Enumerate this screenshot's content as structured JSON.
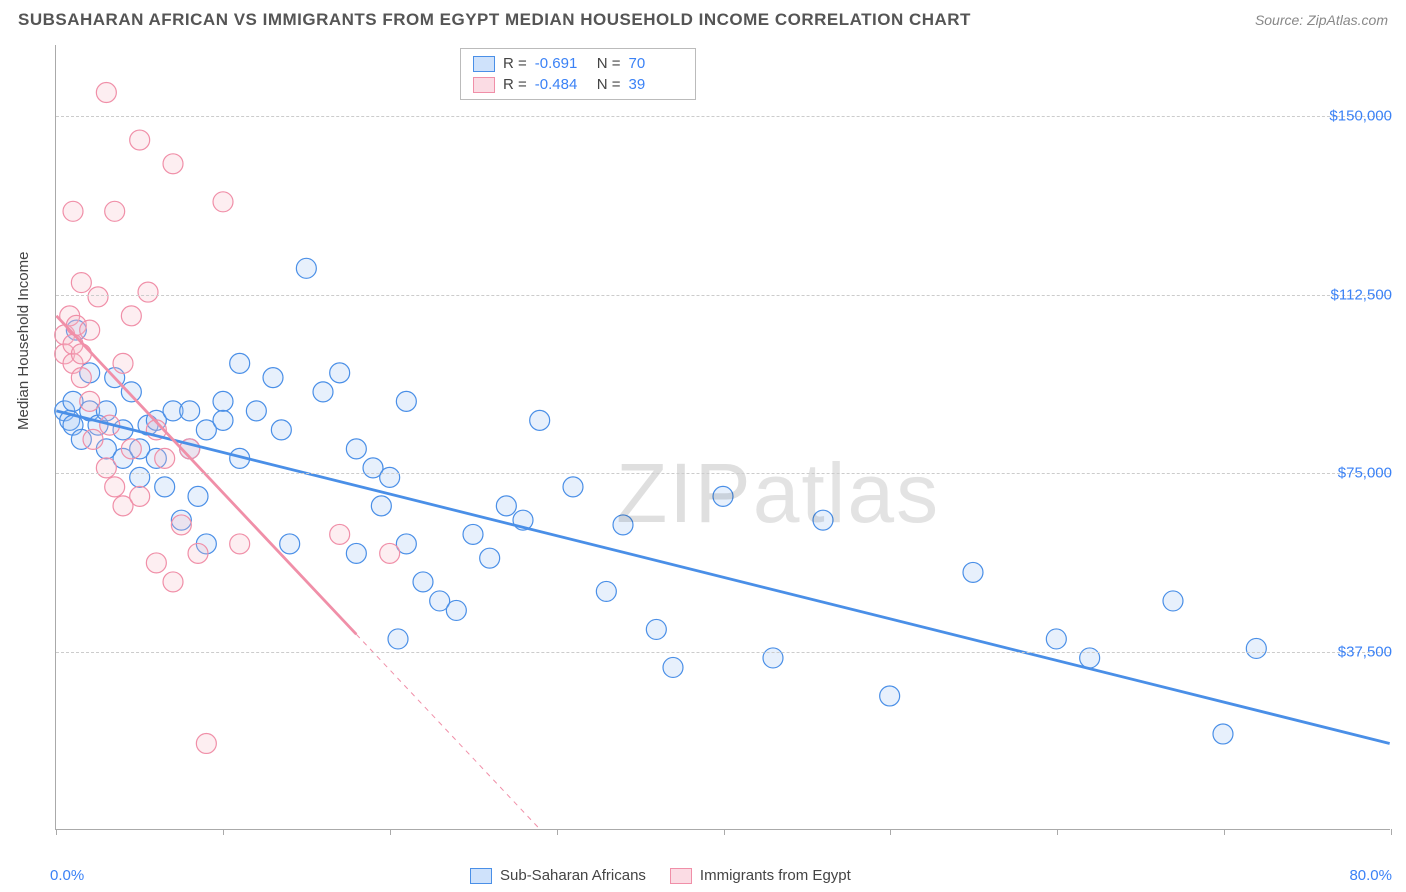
{
  "header": {
    "title": "SUBSAHARAN AFRICAN VS IMMIGRANTS FROM EGYPT MEDIAN HOUSEHOLD INCOME CORRELATION CHART",
    "source": "Source: ZipAtlas.com"
  },
  "chart": {
    "type": "scatter",
    "background_color": "#ffffff",
    "grid_color": "#cccccc",
    "axis_color": "#aaaaaa",
    "xlim": [
      0,
      80
    ],
    "ylim": [
      0,
      165000
    ],
    "x_ticks": [
      0,
      10,
      20,
      30,
      40,
      50,
      60,
      70,
      80
    ],
    "y_gridlines": [
      37500,
      75000,
      112500,
      150000
    ],
    "x_tick_labels": {
      "first": "0.0%",
      "last": "80.0%"
    },
    "y_tick_labels": [
      "$37,500",
      "$75,000",
      "$112,500",
      "$150,000"
    ],
    "ylabel": "Median Household Income",
    "ylabel_fontsize": 15,
    "tick_label_color": "#3b82f6",
    "marker_radius": 10,
    "marker_fill_opacity": 0.25,
    "marker_stroke_width": 1.2,
    "trend_line_width_main": 2.8,
    "trend_line_width_dash": 1,
    "watermark": {
      "text_a": "ZIP",
      "text_b": "atlas",
      "opacity": 0.12,
      "fontsize": 84
    }
  },
  "series": [
    {
      "id": "subsaharan",
      "label": "Sub-Saharan Africans",
      "color_stroke": "#4a8fe7",
      "color_fill": "#9ec5f5",
      "R": "-0.691",
      "N": "70",
      "trend": {
        "x1": 0,
        "y1": 88000,
        "x2": 80,
        "y2": 18000,
        "solid_until_x": 80
      },
      "points": [
        [
          0.5,
          88000
        ],
        [
          0.8,
          86000
        ],
        [
          1,
          90000
        ],
        [
          1,
          85000
        ],
        [
          1.2,
          105000
        ],
        [
          1.5,
          82000
        ],
        [
          2,
          88000
        ],
        [
          2,
          96000
        ],
        [
          2.5,
          85000
        ],
        [
          3,
          80000
        ],
        [
          3,
          88000
        ],
        [
          3.5,
          95000
        ],
        [
          4,
          84000
        ],
        [
          4,
          78000
        ],
        [
          4.5,
          92000
        ],
        [
          5,
          80000
        ],
        [
          5,
          74000
        ],
        [
          5.5,
          85000
        ],
        [
          6,
          78000
        ],
        [
          6,
          86000
        ],
        [
          6.5,
          72000
        ],
        [
          7,
          88000
        ],
        [
          7.5,
          65000
        ],
        [
          8,
          80000
        ],
        [
          8,
          88000
        ],
        [
          8.5,
          70000
        ],
        [
          9,
          84000
        ],
        [
          9,
          60000
        ],
        [
          10,
          90000
        ],
        [
          10,
          86000
        ],
        [
          11,
          98000
        ],
        [
          11,
          78000
        ],
        [
          12,
          88000
        ],
        [
          13,
          95000
        ],
        [
          13.5,
          84000
        ],
        [
          14,
          60000
        ],
        [
          15,
          118000
        ],
        [
          16,
          92000
        ],
        [
          17,
          96000
        ],
        [
          18,
          80000
        ],
        [
          18,
          58000
        ],
        [
          19,
          76000
        ],
        [
          19.5,
          68000
        ],
        [
          20,
          74000
        ],
        [
          20.5,
          40000
        ],
        [
          21,
          90000
        ],
        [
          21,
          60000
        ],
        [
          22,
          52000
        ],
        [
          23,
          48000
        ],
        [
          24,
          46000
        ],
        [
          25,
          62000
        ],
        [
          26,
          57000
        ],
        [
          27,
          68000
        ],
        [
          28,
          65000
        ],
        [
          29,
          86000
        ],
        [
          31,
          72000
        ],
        [
          33,
          50000
        ],
        [
          34,
          64000
        ],
        [
          36,
          42000
        ],
        [
          37,
          34000
        ],
        [
          40,
          70000
        ],
        [
          43,
          36000
        ],
        [
          46,
          65000
        ],
        [
          50,
          28000
        ],
        [
          55,
          54000
        ],
        [
          60,
          40000
        ],
        [
          62,
          36000
        ],
        [
          67,
          48000
        ],
        [
          70,
          20000
        ],
        [
          72,
          38000
        ]
      ]
    },
    {
      "id": "egypt",
      "label": "Immigrants from Egypt",
      "color_stroke": "#f08fa8",
      "color_fill": "#f7bcc9",
      "R": "-0.484",
      "N": "39",
      "trend": {
        "x1": 0,
        "y1": 108000,
        "x2": 29,
        "y2": 0,
        "solid_until_x": 18
      },
      "points": [
        [
          0.5,
          104000
        ],
        [
          0.5,
          100000
        ],
        [
          0.8,
          108000
        ],
        [
          1,
          102000
        ],
        [
          1,
          98000
        ],
        [
          1,
          130000
        ],
        [
          1.2,
          106000
        ],
        [
          1.5,
          95000
        ],
        [
          1.5,
          100000
        ],
        [
          1.5,
          115000
        ],
        [
          2,
          105000
        ],
        [
          2,
          90000
        ],
        [
          2.2,
          82000
        ],
        [
          2.5,
          112000
        ],
        [
          3,
          76000
        ],
        [
          3,
          155000
        ],
        [
          3.2,
          85000
        ],
        [
          3.5,
          72000
        ],
        [
          3.5,
          130000
        ],
        [
          4,
          98000
        ],
        [
          4,
          68000
        ],
        [
          4.5,
          108000
        ],
        [
          4.5,
          80000
        ],
        [
          5,
          145000
        ],
        [
          5,
          70000
        ],
        [
          5.5,
          113000
        ],
        [
          6,
          84000
        ],
        [
          6,
          56000
        ],
        [
          6.5,
          78000
        ],
        [
          7,
          140000
        ],
        [
          7,
          52000
        ],
        [
          7.5,
          64000
        ],
        [
          8,
          80000
        ],
        [
          8.5,
          58000
        ],
        [
          9,
          18000
        ],
        [
          10,
          132000
        ],
        [
          11,
          60000
        ],
        [
          17,
          62000
        ],
        [
          20,
          58000
        ]
      ]
    }
  ],
  "legend_top": {
    "rows": [
      {
        "swatch_stroke": "#4a8fe7",
        "swatch_fill": "#cfe2fb",
        "r_label": "R =",
        "r_val": "-0.691",
        "n_label": "N =",
        "n_val": "70"
      },
      {
        "swatch_stroke": "#f08fa8",
        "swatch_fill": "#fbdce4",
        "r_label": "R =",
        "r_val": "-0.484",
        "n_label": "N =",
        "n_val": "39"
      }
    ]
  },
  "legend_bottom": {
    "items": [
      {
        "swatch_stroke": "#4a8fe7",
        "swatch_fill": "#cfe2fb",
        "label": "Sub-Saharan Africans"
      },
      {
        "swatch_stroke": "#f08fa8",
        "swatch_fill": "#fbdce4",
        "label": "Immigrants from Egypt"
      }
    ]
  }
}
